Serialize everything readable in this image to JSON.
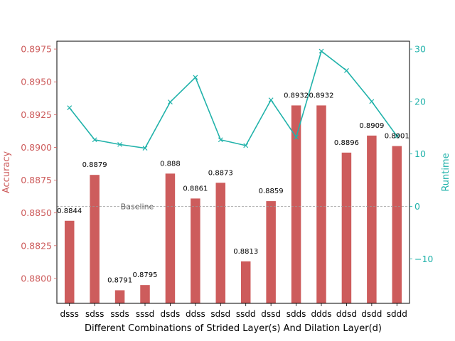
{
  "chart_data": {
    "type": "bar",
    "xlabel": "Different Combinations of Strided Layer(s) And Dilation Layer(d)",
    "categories": [
      "dsss",
      "sdss",
      "ssds",
      "sssd",
      "dsds",
      "ddss",
      "sdsd",
      "ssdd",
      "dssd",
      "sdds",
      "ddds",
      "ddsd",
      "dsdd",
      "sddd"
    ],
    "left_axis": {
      "label": "Accuracy",
      "color": "#cd5c5c",
      "ylim": [
        0.8781,
        0.8981
      ],
      "ticks": [
        0.88,
        0.8825,
        0.885,
        0.8875,
        0.89,
        0.8925,
        0.895,
        0.8975
      ],
      "tick_labels": [
        "0.8800",
        "0.8825",
        "0.8850",
        "0.8875",
        "0.8900",
        "0.8925",
        "0.8950",
        "0.8975"
      ]
    },
    "right_axis": {
      "label": "Runtime",
      "color": "#20b2aa",
      "ylim": [
        -18.5,
        31.5
      ],
      "ticks": [
        -10,
        0,
        10,
        20,
        30
      ],
      "tick_labels": [
        "−10",
        "0",
        "10",
        "20",
        "30"
      ]
    },
    "series": [
      {
        "kind": "bar",
        "axis": "left",
        "color": "#cd5c5c",
        "values": [
          0.8844,
          0.8879,
          0.8791,
          0.8795,
          0.888,
          0.8861,
          0.8873,
          0.8813,
          0.8859,
          0.8932,
          0.8932,
          0.8896,
          0.8909,
          0.8901
        ],
        "labels": [
          "0.8844",
          "0.8879",
          "0.8791",
          "0.8795",
          "0.888",
          "0.8861",
          "0.8873",
          "0.8813",
          "0.8859",
          "0.8932",
          "0.8932",
          "0.8896",
          "0.8909",
          "0.8901"
        ]
      },
      {
        "kind": "line",
        "axis": "right",
        "color": "#20b2aa",
        "marker": "x",
        "values": [
          18.8,
          12.7,
          11.8,
          11.1,
          19.9,
          24.6,
          12.7,
          11.6,
          20.3,
          13.2,
          29.6,
          25.9,
          20.0,
          13.4
        ]
      }
    ],
    "baseline": {
      "label": "Baseline",
      "value": 0.8855,
      "axis": "left",
      "color": "#999999"
    },
    "grid": false
  }
}
